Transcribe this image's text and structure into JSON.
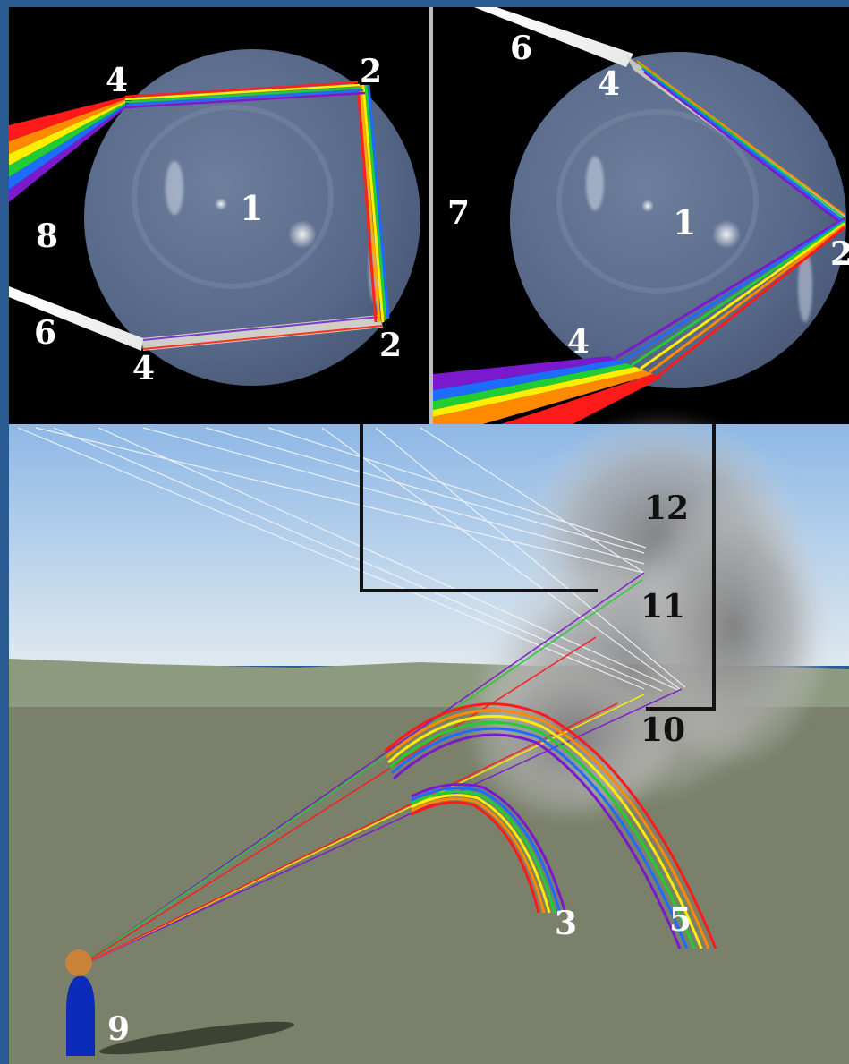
{
  "colors": {
    "frame": "#2a5a92",
    "panel_bg": "#000000",
    "sky_top": "#8eb8e6",
    "sky_bottom": "#d9e6ef",
    "ground": "#7a806a",
    "hills": "#8e9a80",
    "drop": "#5d6f8a",
    "person_body": "#0a2cb8",
    "person_head": "#c8823a",
    "label_light": "#ffffff",
    "label_dark": "#111111"
  },
  "spectrum": [
    "#ff1a1a",
    "#ff8a00",
    "#ffee00",
    "#22cc33",
    "#1e6cff",
    "#7a1acc"
  ],
  "labels": {
    "drop_center_left": "1",
    "drop_center_right": "1",
    "reflect_a": "2",
    "reflect_b": "2",
    "reflect_c": "2",
    "primary_bow": "3",
    "entry_left_top": "4",
    "entry_left_bottom": "4",
    "entry_right_top": "4",
    "exit_right_bottom": "4",
    "secondary_bow": "5",
    "sun_ray_left": "6",
    "sun_ray_right": "6",
    "panel_right_label": "7",
    "panel_left_label": "8",
    "observer": "9",
    "point_10": "10",
    "point_11": "11",
    "point_12": "12"
  }
}
